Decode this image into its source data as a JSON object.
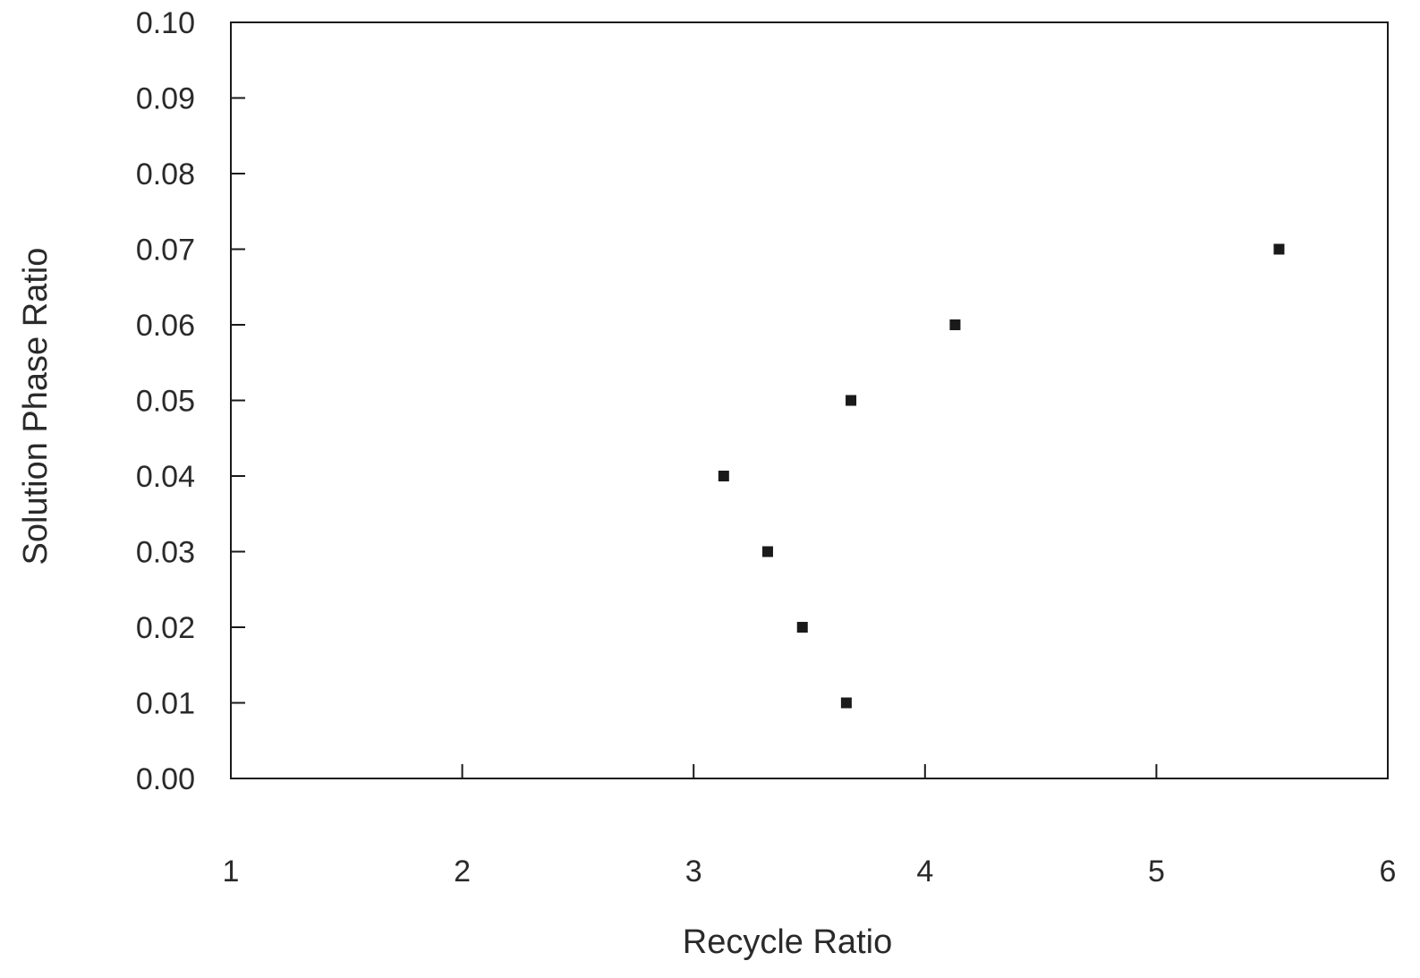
{
  "chart_data": {
    "type": "scatter",
    "title": "",
    "xlabel": "Recycle Ratio",
    "ylabel": "Solution Phase Ratio",
    "xlim": [
      1,
      6
    ],
    "ylim": [
      0.0,
      0.1
    ],
    "x_ticks": [
      1,
      2,
      3,
      4,
      5,
      6
    ],
    "x_tick_labels": [
      "1",
      "2",
      "3",
      "4",
      "5",
      "6"
    ],
    "y_ticks": [
      0.0,
      0.01,
      0.02,
      0.03,
      0.04,
      0.05,
      0.06,
      0.07,
      0.08,
      0.09,
      0.1
    ],
    "y_tick_labels": [
      "0.00",
      "0.01",
      "0.02",
      "0.03",
      "0.04",
      "0.05",
      "0.06",
      "0.07",
      "0.08",
      "0.09",
      "0.10"
    ],
    "grid": false,
    "legend": "none",
    "marker": "square",
    "marker_color": "#1a1a1a",
    "series": [
      {
        "points": [
          {
            "x": 3.66,
            "y": 0.01
          },
          {
            "x": 3.47,
            "y": 0.02
          },
          {
            "x": 3.32,
            "y": 0.03
          },
          {
            "x": 3.13,
            "y": 0.04
          },
          {
            "x": 3.68,
            "y": 0.05
          },
          {
            "x": 4.13,
            "y": 0.06
          },
          {
            "x": 5.53,
            "y": 0.07
          }
        ]
      }
    ]
  }
}
